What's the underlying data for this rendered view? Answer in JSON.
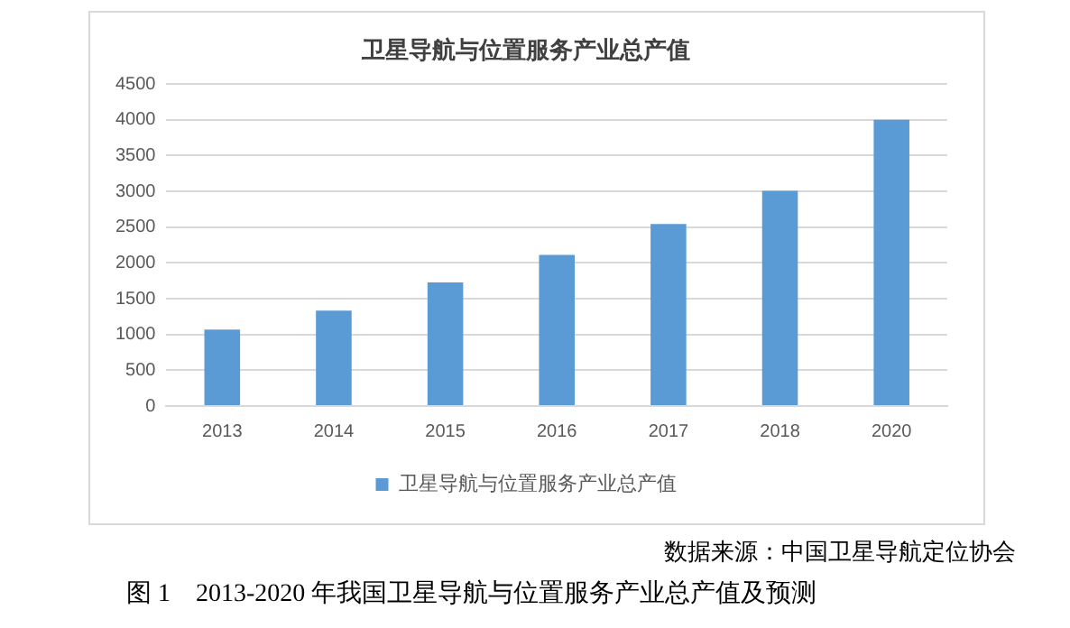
{
  "chart_data": {
    "type": "bar",
    "title": "卫星导航与位置服务产业总产值",
    "categories": [
      "2013",
      "2014",
      "2015",
      "2016",
      "2017",
      "2018",
      "2020"
    ],
    "series": [
      {
        "name": "卫星导航与位置服务产业总产值",
        "color": "#5b9bd5",
        "values": [
          1070,
          1333,
          1728,
          2114,
          2544,
          3009,
          4000
        ]
      }
    ],
    "ylim": [
      0,
      4500
    ],
    "yticks": [
      0,
      500,
      1000,
      1500,
      2000,
      2500,
      3000,
      3500,
      4000,
      4500
    ],
    "grid": "y",
    "legend": "bottom",
    "annotations": [
      "数据来源：中国卫星导航定位协会",
      "图 1　2013-2020 年我国卫星导航与位置服务产业总产值及预测"
    ]
  }
}
